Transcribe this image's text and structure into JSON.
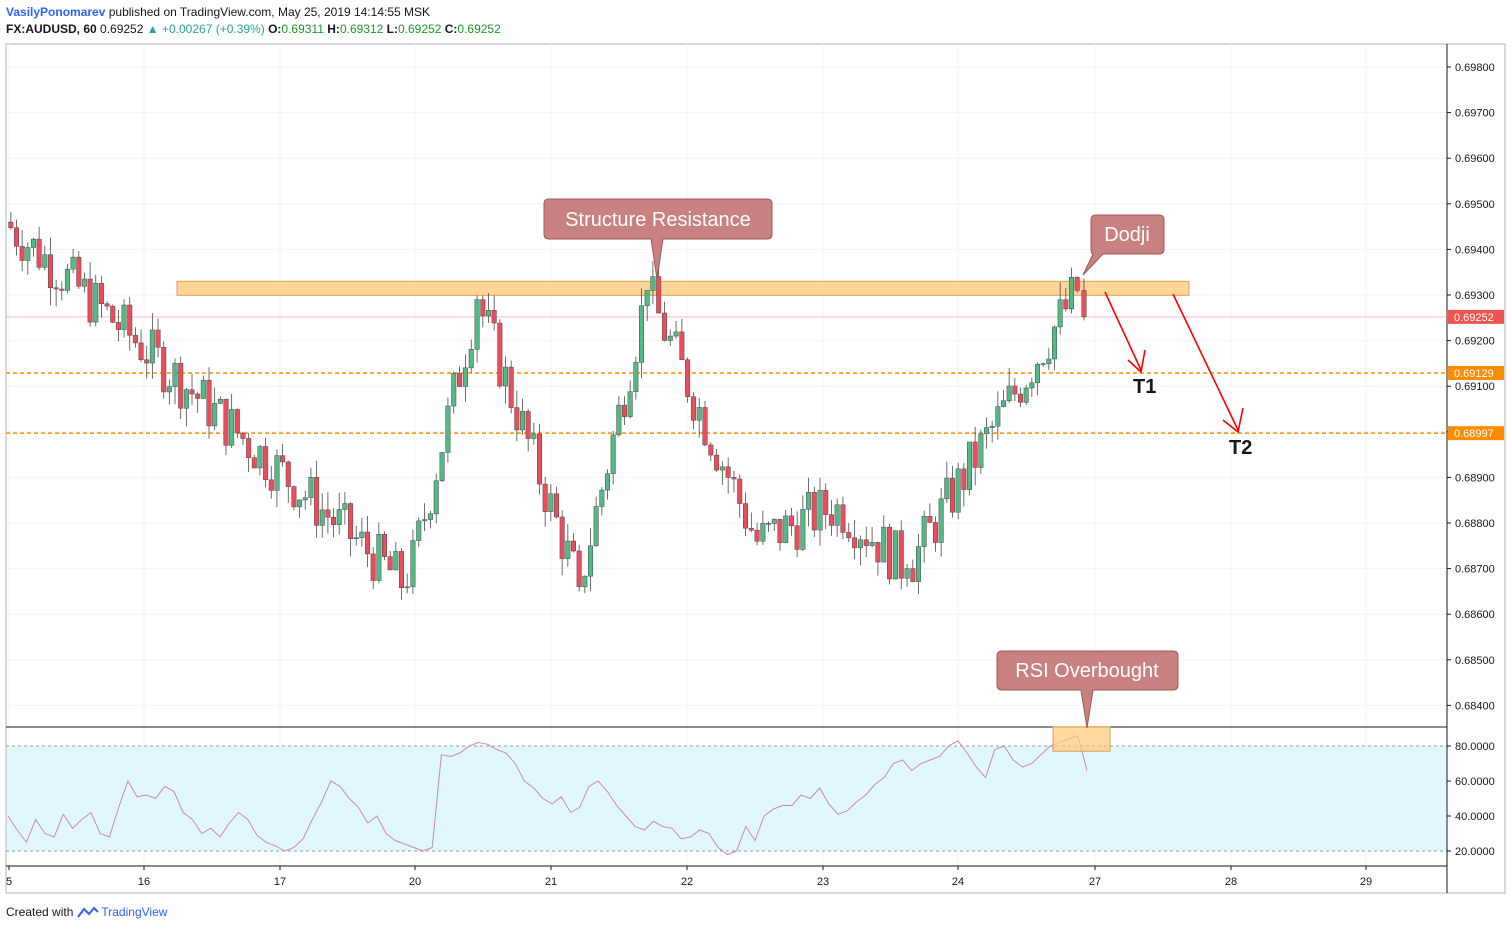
{
  "header": {
    "author": "VasilyPonomarev",
    "published_text": "published on TradingView.com, May 25, 2019 14:14:55 MSK",
    "symbol": "FX:AUDUSD, 60",
    "last_price": "0.69252",
    "change": "▲ +0.00267 (+0.39%)",
    "o_label": "O:",
    "o_value": "0.69311",
    "h_label": "H:",
    "h_value": "0.69312",
    "l_label": "L:",
    "l_value": "0.69252",
    "c_label": "C:",
    "c_value": "0.69252"
  },
  "footer": {
    "created_with": "Created with",
    "brand": "TradingView"
  },
  "colors": {
    "up": "#53b987",
    "down": "#eb4d5c",
    "zone_fill": "#ffcc80",
    "zone_stroke": "#e0a050",
    "callout": "#c98080",
    "target_line": "#ff8c00",
    "arrow": "#ff0000",
    "rsi_line": "#d184b4",
    "rsi_band": "#e0f8fd",
    "price_tag": "#ef5350"
  },
  "annotations": {
    "structure_resistance": "Structure Resistance",
    "dodji": "Dodji",
    "rsi_overbought": "RSI Overbought",
    "t1": "T1",
    "t2": "T2"
  },
  "price_tags": [
    "0.69252",
    "0.69129",
    "0.68997"
  ],
  "chart_data": [
    {
      "type": "candlestick",
      "title": "FX:AUDUSD, 60",
      "x_ticks": [
        "5",
        "16",
        "17",
        "20",
        "21",
        "22",
        "23",
        "24",
        "27",
        "28",
        "29"
      ],
      "y_ticks": [
        "0.69800",
        "0.69700",
        "0.69600",
        "0.69500",
        "0.69400",
        "0.69300",
        "0.69200",
        "0.69100",
        "0.69000",
        "0.68900",
        "0.68800",
        "0.68700",
        "0.68600",
        "0.68500",
        "0.68400"
      ],
      "ylim": [
        0.6836,
        0.6989
      ],
      "last_price": 0.69252,
      "resistance_zone": [
        0.693,
        0.6933
      ],
      "targets": {
        "T1": 0.69129,
        "T2": 0.68997
      },
      "segments": [
        {
          "day": "15",
          "start": 0.6946,
          "end": 0.6866
        },
        {
          "day": "16",
          "start": 0.6866,
          "end": 0.6929
        },
        {
          "day": "17",
          "start": 0.6929,
          "end": 0.6866
        },
        {
          "day": "20",
          "start": 0.6866,
          "end": 0.6931
        },
        {
          "day": "21",
          "start": 0.6931,
          "end": 0.6876
        },
        {
          "day": "22",
          "start": 0.6876,
          "end": 0.6884
        },
        {
          "day": "23",
          "start": 0.6884,
          "end": 0.687
        },
        {
          "day": "24",
          "start": 0.687,
          "end": 0.6931
        },
        {
          "day": "24-end",
          "start": 0.6931,
          "end": 0.69252
        }
      ]
    },
    {
      "type": "line",
      "title": "RSI",
      "y_ticks": [
        "80.0000",
        "60.0000",
        "40.0000",
        "20.0000"
      ],
      "ylim": [
        13,
        93
      ],
      "overbought": 80,
      "oversold": 20,
      "values": [
        40,
        32,
        25,
        38,
        30,
        28,
        41,
        33,
        38,
        42,
        30,
        28,
        45,
        60,
        51,
        52,
        50,
        57,
        54,
        42,
        38,
        30,
        33,
        28,
        36,
        42,
        38,
        29,
        25,
        23,
        20,
        22,
        27,
        38,
        48,
        60,
        57,
        50,
        45,
        36,
        40,
        30,
        26,
        24,
        22,
        20,
        22,
        75,
        74,
        76,
        80,
        82,
        81,
        78,
        76,
        70,
        60,
        56,
        50,
        47,
        51,
        42,
        45,
        57,
        60,
        54,
        46,
        40,
        34,
        32,
        37,
        34,
        33,
        27,
        28,
        32,
        30,
        22,
        18,
        20,
        34,
        26,
        40,
        44,
        46,
        46,
        52,
        50,
        56,
        47,
        41,
        43,
        48,
        52,
        58,
        62,
        70,
        72,
        66,
        70,
        72,
        74,
        80,
        83,
        76,
        68,
        62,
        78,
        80,
        72,
        68,
        70,
        75,
        80,
        82,
        84,
        86,
        66
      ]
    }
  ]
}
